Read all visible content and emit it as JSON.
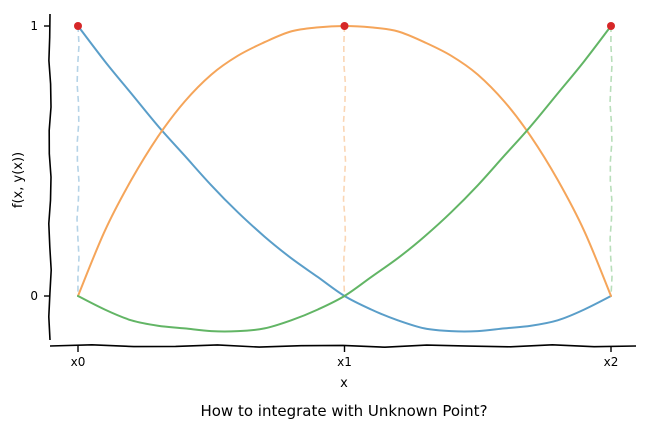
{
  "chart_data": {
    "type": "line",
    "title": "How to integrate with Unknown Point?",
    "xlabel": "x",
    "ylabel": "f(x, y(x))",
    "categories": [
      "x0",
      "x1",
      "x2"
    ],
    "x": [
      0,
      1,
      2
    ],
    "xlim": [
      0,
      2
    ],
    "ylim": [
      -0.17,
      1.02
    ],
    "yticks": [
      {
        "value": 0,
        "label": "0"
      },
      {
        "value": 1,
        "label": "1"
      }
    ],
    "grid": false,
    "series": [
      {
        "color": "#5a9ec9",
        "x": [
          0,
          0.1,
          0.2,
          0.3,
          0.4,
          0.5,
          0.6,
          0.7,
          0.8,
          0.9,
          1.0,
          1.1,
          1.2,
          1.3,
          1.4,
          1.5,
          1.6,
          1.7,
          1.8,
          1.9,
          2.0
        ],
        "values": [
          1.0,
          0.87,
          0.75,
          0.63,
          0.52,
          0.41,
          0.31,
          0.22,
          0.14,
          0.07,
          0.0,
          -0.05,
          -0.09,
          -0.12,
          -0.13,
          -0.13,
          -0.12,
          -0.11,
          -0.09,
          -0.05,
          0.0
        ]
      },
      {
        "color": "#f5a55a",
        "x": [
          0,
          0.1,
          0.2,
          0.3,
          0.4,
          0.5,
          0.6,
          0.7,
          0.8,
          0.9,
          1.0,
          1.1,
          1.2,
          1.3,
          1.4,
          1.5,
          1.6,
          1.7,
          1.8,
          1.9,
          2.0
        ],
        "values": [
          0.0,
          0.24,
          0.43,
          0.59,
          0.72,
          0.82,
          0.89,
          0.94,
          0.98,
          0.995,
          1.0,
          0.995,
          0.98,
          0.94,
          0.89,
          0.82,
          0.72,
          0.59,
          0.43,
          0.24,
          0.0
        ]
      },
      {
        "color": "#62b565",
        "x": [
          0,
          0.1,
          0.2,
          0.3,
          0.4,
          0.5,
          0.6,
          0.7,
          0.8,
          0.9,
          1.0,
          1.1,
          1.2,
          1.3,
          1.4,
          1.5,
          1.6,
          1.7,
          1.8,
          1.9,
          2.0
        ],
        "values": [
          0.0,
          -0.05,
          -0.09,
          -0.11,
          -0.12,
          -0.13,
          -0.13,
          -0.12,
          -0.09,
          -0.05,
          0.0,
          0.07,
          0.14,
          0.22,
          0.31,
          0.41,
          0.52,
          0.63,
          0.75,
          0.87,
          1.0
        ]
      }
    ],
    "points": {
      "color": "#d62728",
      "x": [
        0,
        1,
        2
      ],
      "y": [
        1,
        1,
        1
      ]
    }
  }
}
